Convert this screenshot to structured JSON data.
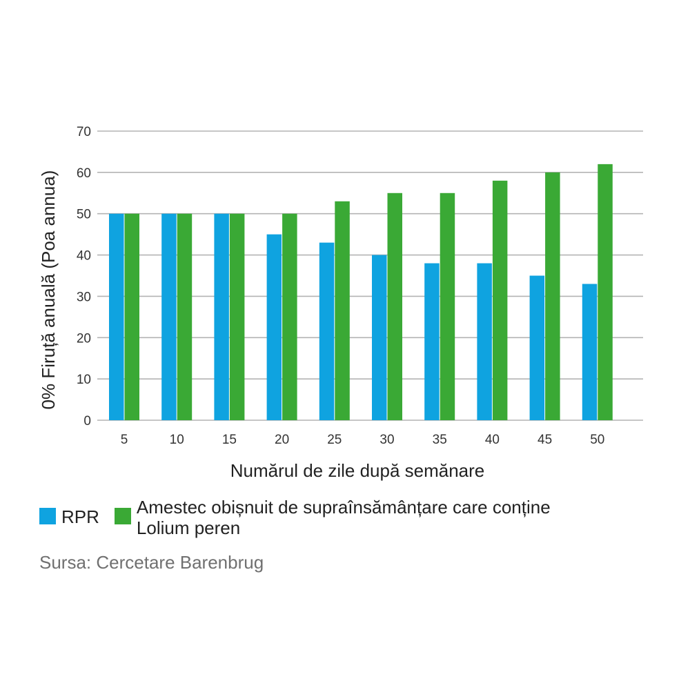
{
  "chart_data": {
    "type": "bar",
    "categories": [
      "5",
      "10",
      "15",
      "20",
      "25",
      "30",
      "35",
      "40",
      "45",
      "50"
    ],
    "series": [
      {
        "name": "RPR",
        "color": "#0fa3e0",
        "values": [
          50,
          50,
          50,
          45,
          43,
          40,
          38,
          38,
          35,
          33
        ]
      },
      {
        "name": "Amestec obișnuit de supraînsămânțare care conține Lolium peren",
        "color": "#3aa935",
        "values": [
          50,
          50,
          50,
          50,
          53,
          55,
          55,
          58,
          60,
          62
        ]
      }
    ],
    "ylabel": "0% Firuță anuală (Poa annua)",
    "xlabel": "Numărul de zile după semănare",
    "ylim": [
      0,
      70
    ],
    "yticks": [
      0,
      10,
      20,
      30,
      40,
      50,
      60,
      70
    ],
    "grid": true,
    "legend_position": "bottom-left",
    "source": "Sursa: Cercetare Barenbrug"
  }
}
